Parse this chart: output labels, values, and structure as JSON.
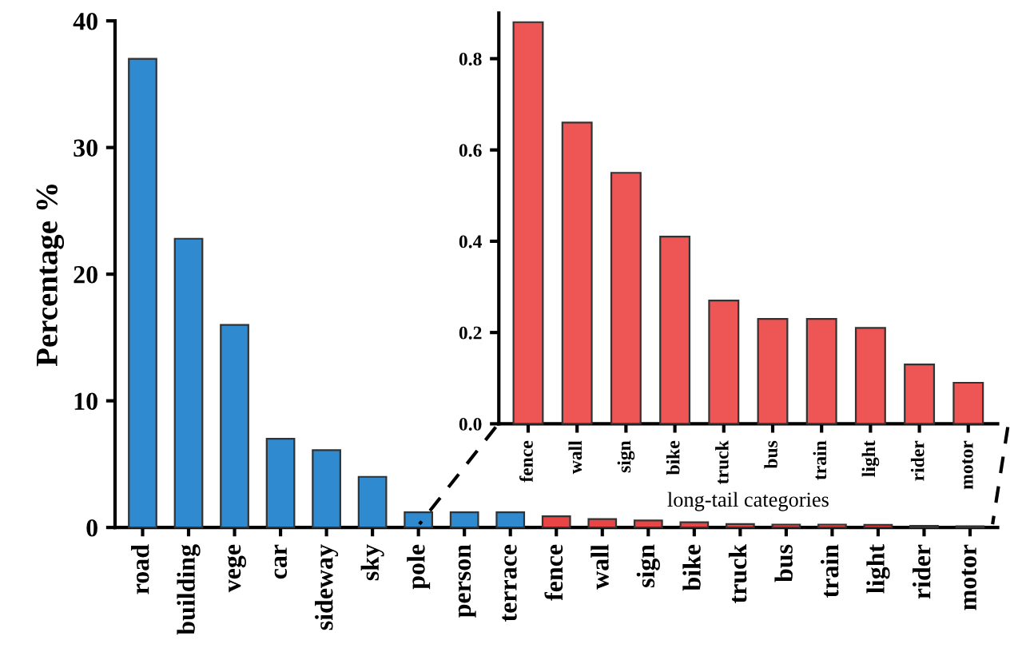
{
  "chart_data": [
    {
      "type": "bar",
      "ylabel": "Percentage %",
      "categories": [
        "road",
        "building",
        "vege",
        "car",
        "sideway",
        "sky",
        "pole",
        "person",
        "terrace",
        "fence",
        "wall",
        "sign",
        "bike",
        "truck",
        "bus",
        "train",
        "light",
        "rider",
        "motor"
      ],
      "values": [
        37,
        22.8,
        16,
        7,
        6.1,
        4,
        1.2,
        1.2,
        1.2,
        0.88,
        0.66,
        0.55,
        0.41,
        0.27,
        0.23,
        0.23,
        0.21,
        0.13,
        0.09
      ],
      "colors": [
        "#2f8ad0",
        "#2f8ad0",
        "#2f8ad0",
        "#2f8ad0",
        "#2f8ad0",
        "#2f8ad0",
        "#2f8ad0",
        "#2f8ad0",
        "#2f8ad0",
        "#e84646",
        "#e84646",
        "#e84646",
        "#e84646",
        "#e84646",
        "#e84646",
        "#e84646",
        "#e84646",
        "#e84646",
        "#e84646"
      ],
      "ylim": [
        0,
        40
      ],
      "yticks": [
        0,
        10,
        20,
        30,
        40
      ],
      "grid": false
    },
    {
      "type": "bar",
      "xlabel": "long-tail categories",
      "categories": [
        "fence",
        "wall",
        "sign",
        "bike",
        "truck",
        "bus",
        "train",
        "light",
        "rider",
        "motor"
      ],
      "values": [
        0.88,
        0.66,
        0.55,
        0.41,
        0.27,
        0.23,
        0.23,
        0.21,
        0.13,
        0.09
      ],
      "color": "#ee5555",
      "ylim": [
        0,
        0.9
      ],
      "yticks": [
        {
          "value": 0,
          "label": "0.0"
        },
        0.2,
        0.4,
        0.6,
        0.8
      ],
      "grid": false
    }
  ]
}
